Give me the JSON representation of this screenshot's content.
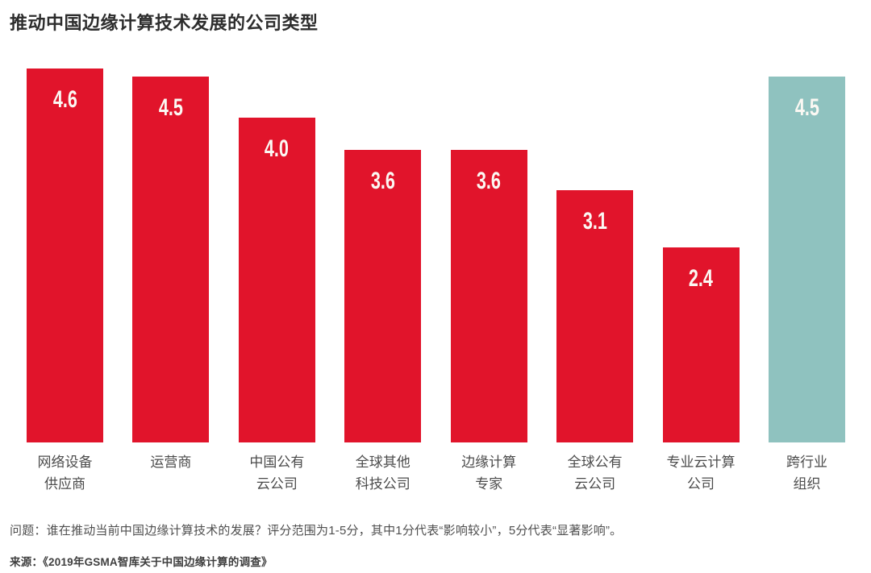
{
  "title": "推动中国边缘计算技术发展的公司类型",
  "colors": {
    "bar_red": "#E1142B",
    "bar_teal": "#8FC2BF",
    "title_text": "#2D2D2D",
    "category_text": "#4B4B4B",
    "footnote_text": "#4F4F4F",
    "value_text": "#FBF8F3",
    "background": "#FFFFFF"
  },
  "chart_data": {
    "type": "bar",
    "title": "推动中国边缘计算技术发展的公司类型",
    "categories": [
      [
        "网络设备",
        "供应商"
      ],
      [
        "运营商"
      ],
      [
        "中国公有",
        "云公司"
      ],
      [
        "全球其他",
        "科技公司"
      ],
      [
        "边缘计算",
        "专家"
      ],
      [
        "全球公有",
        "云公司"
      ],
      [
        "专业云计算",
        "公司"
      ],
      [
        "跨行业",
        "组织"
      ]
    ],
    "values": [
      4.6,
      4.5,
      4.0,
      3.6,
      3.6,
      3.1,
      2.4,
      4.5
    ],
    "value_labels": [
      "4.6",
      "4.5",
      "4.0",
      "3.6",
      "3.6",
      "3.1",
      "2.4",
      "4.5"
    ],
    "bar_colors": [
      "#E1142B",
      "#E1142B",
      "#E1142B",
      "#E1142B",
      "#E1142B",
      "#E1142B",
      "#E1142B",
      "#8FC2BF"
    ],
    "highlight_index": 7,
    "xlabel": "",
    "ylabel": "",
    "ylim": [
      0,
      4.6
    ],
    "grid": false,
    "legend": "none",
    "axes_visible": false,
    "value_label_position": "inside-top"
  },
  "footnote": {
    "question": "问题：谁在推动当前中国边缘计算技术的发展？评分范围为1-5分，其中1分代表“影响较小”，5分代表“显著影响”。",
    "source": "来源：《2019年GSMA智库关于中国边缘计算的调查》"
  }
}
